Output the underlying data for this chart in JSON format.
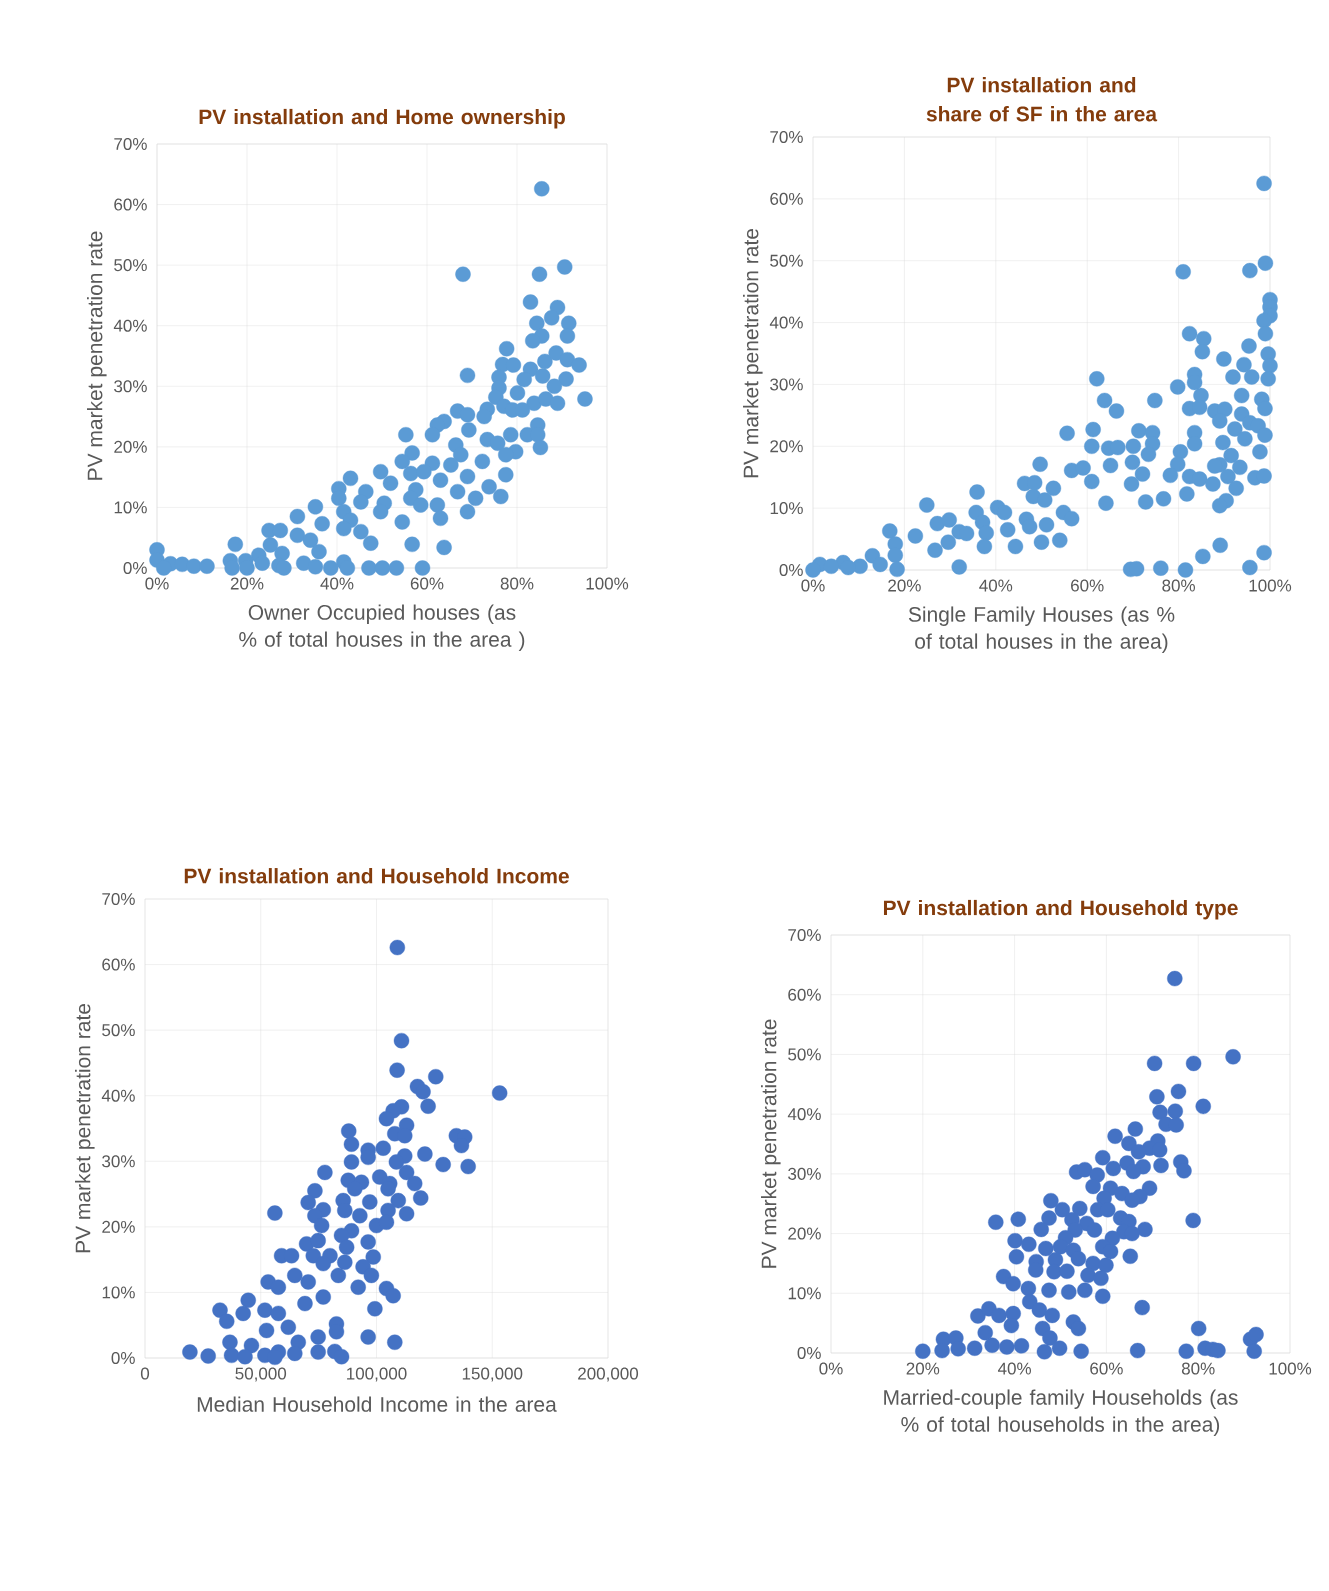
{
  "chart_data": [
    {
      "type": "scatter",
      "title": "PV installation and Home ownership",
      "xlabel": "Owner Occupied houses (as % of total houses in the area )",
      "ylabel": "PV market penetration rate",
      "grid": true,
      "marker": "circle",
      "xlim": [
        0,
        100
      ],
      "ylim": [
        0,
        70
      ],
      "xticks": [
        {
          "value": 0,
          "label": "0%"
        },
        {
          "value": 20,
          "label": "20%"
        },
        {
          "value": 40,
          "label": "40%"
        },
        {
          "value": 60,
          "label": "60%"
        },
        {
          "value": 80,
          "label": "80%"
        },
        {
          "value": 100,
          "label": "100%"
        }
      ],
      "yticks": [
        {
          "value": 0,
          "label": "0%"
        },
        {
          "value": 10,
          "label": "10%"
        },
        {
          "value": 20,
          "label": "20%"
        },
        {
          "value": 30,
          "label": "30%"
        },
        {
          "value": 40,
          "label": "40%"
        },
        {
          "value": 50,
          "label": "50%"
        },
        {
          "value": 60,
          "label": "60%"
        },
        {
          "value": 70,
          "label": "70%"
        }
      ],
      "x": [
        85.5,
        68,
        85,
        90.6,
        83,
        89,
        87.7,
        84.4,
        91.5,
        85.5,
        83.5,
        91.2,
        77.7,
        88.7,
        91.2,
        86.2,
        93.8,
        76.8,
        79.2,
        83,
        69,
        76,
        81.6,
        85.7,
        90.9,
        88.3,
        76,
        80.1,
        75.3,
        83.8,
        86.4,
        89,
        95.1,
        77.1,
        79,
        81.2,
        73.4,
        66.8,
        69,
        63.8,
        72.7,
        62.3,
        84.6,
        69.3,
        61.2,
        55.3,
        73.4,
        78.6,
        82.3,
        84.6,
        75.7,
        66.4,
        79.7,
        77.5,
        85.2,
        56.7,
        67.5,
        54.5,
        61.2,
        65.3,
        72.3,
        49.7,
        56.4,
        59.3,
        77.5,
        69,
        43,
        51.9,
        63,
        73.8,
        40.4,
        46.4,
        57.5,
        66.8,
        76.4,
        40.4,
        45.3,
        50.5,
        56.4,
        70.8,
        62.3,
        58.6,
        35.2,
        49.7,
        41.5,
        69,
        63,
        31.2,
        36.7,
        54.5,
        43,
        24.9,
        27.4,
        41.5,
        45.3,
        31.2,
        34.1,
        47.5,
        56.7,
        63.8,
        17.4,
        25.2,
        27.8,
        36,
        22.6,
        0,
        0,
        3,
        5.6,
        8.2,
        11.1,
        16.3,
        19.7,
        16.7,
        20,
        23.4,
        27.1,
        28.2,
        32.6,
        35.2,
        38.6,
        41.5,
        42.3,
        47.1,
        50.1,
        53.2,
        59,
        1.5
      ],
      "series": [
        {
          "color": "#5b9bd5",
          "values": [
            62.6,
            48.5,
            48.5,
            49.7,
            43.9,
            43,
            41.3,
            40.4,
            40.4,
            38.3,
            37.5,
            38.3,
            36.2,
            35.5,
            34.4,
            34.1,
            33.5,
            33.6,
            33.5,
            32.8,
            31.8,
            31.5,
            31.1,
            31.7,
            31.2,
            30,
            29.7,
            28.9,
            28.2,
            27.2,
            27.9,
            27.2,
            27.9,
            26.7,
            26.1,
            26.1,
            26.2,
            25.9,
            25.3,
            24.2,
            25,
            23.6,
            23.6,
            22.8,
            22,
            22,
            21.2,
            22,
            22,
            22,
            20.6,
            20.3,
            19.2,
            18.7,
            19.9,
            19,
            18.7,
            17.6,
            17.3,
            17,
            17.6,
            15.9,
            15.6,
            15.9,
            15.4,
            15.1,
            14.8,
            14,
            14.5,
            13.4,
            13.1,
            12.6,
            12.9,
            12.6,
            11.8,
            11.5,
            10.9,
            10.7,
            11.5,
            11.5,
            10.4,
            10.4,
            10.1,
            9.3,
            9.3,
            9.3,
            8.2,
            8.5,
            7.3,
            7.6,
            7.9,
            6.2,
            6.2,
            6.5,
            6,
            5.4,
            4.6,
            4.1,
            3.9,
            3.4,
            3.9,
            3.8,
            2.4,
            2.7,
            2.1,
            3,
            1.3,
            0.7,
            0.6,
            0.3,
            0.3,
            1.2,
            1.2,
            0,
            0,
            0.8,
            0.4,
            0,
            0.8,
            0.2,
            0,
            1,
            0,
            0,
            0,
            0,
            0,
            0
          ]
        }
      ]
    },
    {
      "type": "scatter",
      "title": "PV installation and share of SF in the area",
      "xlabel": "Single Family Houses (as % of total houses in the area)",
      "ylabel": "PV market penetration rate",
      "grid": true,
      "marker": "circle",
      "xlim": [
        0,
        100
      ],
      "ylim": [
        0,
        70
      ],
      "xticks": [
        {
          "value": 0,
          "label": "0%"
        },
        {
          "value": 20,
          "label": "20%"
        },
        {
          "value": 40,
          "label": "40%"
        },
        {
          "value": 60,
          "label": "60%"
        },
        {
          "value": 80,
          "label": "80%"
        },
        {
          "value": 100,
          "label": "100%"
        }
      ],
      "yticks": [
        {
          "value": 0,
          "label": "0%"
        },
        {
          "value": 10,
          "label": "10%"
        },
        {
          "value": 20,
          "label": "20%"
        },
        {
          "value": 30,
          "label": "30%"
        },
        {
          "value": 40,
          "label": "40%"
        },
        {
          "value": 50,
          "label": "50%"
        },
        {
          "value": 60,
          "label": "60%"
        },
        {
          "value": 70,
          "label": "70%"
        }
      ],
      "x": [
        98.7,
        81,
        95.6,
        99,
        100,
        100,
        100,
        98.7,
        99,
        82.4,
        85.5,
        85.2,
        95.4,
        89.9,
        99.6,
        94.3,
        100,
        83.5,
        83.5,
        91.9,
        96,
        99.6,
        62.1,
        79.8,
        84.9,
        93.8,
        98.2,
        74.8,
        63.8,
        66.4,
        82.4,
        84.6,
        87.9,
        90.1,
        98.9,
        93.8,
        89,
        95.6,
        97.4,
        55.6,
        61.3,
        71.3,
        74.3,
        83.5,
        92.3,
        98.9,
        89.7,
        94.5,
        83.5,
        61,
        64.7,
        66.7,
        70.1,
        74.3,
        73.4,
        80.4,
        97.8,
        91.5,
        89,
        49.7,
        69.9,
        65.1,
        79.8,
        87.9,
        93.4,
        56.6,
        59.1,
        72.1,
        78.2,
        82.4,
        84.6,
        87.5,
        90.8,
        96.7,
        98.7,
        61,
        46.3,
        48.5,
        52.6,
        69.7,
        92.6,
        35.9,
        48.2,
        50.7,
        81.8,
        76.7,
        72.8,
        64.1,
        90.4,
        89,
        24.9,
        40.4,
        41.9,
        35.7,
        54.8,
        56.6,
        27.2,
        29.8,
        46.7,
        37.1,
        47.4,
        51.1,
        42.6,
        16.8,
        32,
        33.6,
        37.9,
        22.4,
        29.6,
        50,
        54,
        18,
        26.7,
        37.5,
        44.3,
        89.1,
        85.3,
        98.7,
        18,
        13,
        14.7,
        10.3,
        6.6,
        1.5,
        4,
        0,
        18.4,
        32,
        69.5,
        70.8,
        76.1,
        81.5,
        95.6,
        7.7
      ],
      "series": [
        {
          "color": "#5b9bd5",
          "values": [
            62.5,
            48.2,
            48.4,
            49.6,
            43.7,
            42.5,
            41.1,
            40.3,
            38.2,
            38.2,
            37.4,
            35.3,
            36.2,
            34.1,
            34.9,
            33.2,
            33,
            31.6,
            30.3,
            31.2,
            31.2,
            30.9,
            30.9,
            29.6,
            28.2,
            28.2,
            27.6,
            27.4,
            27.4,
            25.7,
            26.1,
            26.3,
            25.7,
            26,
            26.1,
            25.2,
            24.1,
            23.8,
            23.3,
            22.1,
            22.7,
            22.5,
            22.2,
            22.2,
            22.8,
            21.8,
            20.6,
            21.2,
            20.4,
            20,
            19.7,
            19.8,
            20,
            20.4,
            18.7,
            19.1,
            19.1,
            18.5,
            17,
            17.1,
            17.4,
            16.9,
            17.1,
            16.8,
            16.6,
            16.1,
            16.5,
            15.5,
            15.3,
            15.1,
            14.7,
            13.9,
            15.1,
            14.9,
            15.2,
            14.3,
            14,
            14.1,
            13.2,
            13.9,
            13.2,
            12.6,
            11.9,
            11.3,
            12.3,
            11.5,
            11,
            10.8,
            11.2,
            10.4,
            10.5,
            10.1,
            9.3,
            9.3,
            9.3,
            8.3,
            7.5,
            8.1,
            8.2,
            7.7,
            7,
            7.3,
            6.5,
            6.3,
            6.2,
            5.9,
            6,
            5.5,
            4.5,
            4.5,
            4.8,
            4.2,
            3.2,
            3.8,
            3.8,
            4,
            2.2,
            2.8,
            2.4,
            2.3,
            0.9,
            0.6,
            1.2,
            0.9,
            0.6,
            0,
            0.1,
            0.5,
            0.1,
            0.2,
            0.3,
            0,
            0.4,
            0.4
          ]
        }
      ]
    },
    {
      "type": "scatter",
      "title": "PV installation and Household Income",
      "xlabel": "Median Household  Income in the area",
      "ylabel": "PV market penetration rate",
      "grid": true,
      "marker": "circle",
      "xlim": [
        0,
        200000
      ],
      "ylim": [
        0,
        70
      ],
      "xticks": [
        0,
        {
          "value": 50000,
          "label": "50,000"
        },
        {
          "value": 100000,
          "label": "100,000"
        },
        {
          "value": 150000,
          "label": "150,000"
        },
        {
          "value": 200000,
          "label": "200,000"
        }
      ],
      "yticks": [
        {
          "value": 0,
          "label": "0%"
        },
        {
          "value": 10,
          "label": "10%"
        },
        {
          "value": 20,
          "label": "20%"
        },
        {
          "value": 30,
          "label": "30%"
        },
        {
          "value": 40,
          "label": "40%"
        },
        {
          "value": 50,
          "label": "50%"
        },
        {
          "value": 60,
          "label": "60%"
        },
        {
          "value": 70,
          "label": "70%"
        }
      ],
      "x": [
        109000,
        110800,
        108900,
        125600,
        153200,
        117700,
        120100,
        122300,
        110800,
        107200,
        104300,
        113000,
        88000,
        107900,
        112200,
        134500,
        138100,
        136700,
        89200,
        96400,
        102900,
        120900,
        112200,
        89200,
        96400,
        108600,
        128800,
        139600,
        77700,
        113000,
        101400,
        87800,
        93500,
        105700,
        116500,
        73400,
        90600,
        105000,
        119100,
        70500,
        85600,
        97100,
        109400,
        77000,
        86300,
        56100,
        105000,
        113000,
        73400,
        92800,
        100000,
        104300,
        76300,
        89200,
        84900,
        69800,
        74800,
        87100,
        96400,
        59000,
        63300,
        72700,
        79900,
        98600,
        86300,
        77000,
        94200,
        64700,
        83500,
        97800,
        53200,
        57600,
        70500,
        92100,
        104300,
        107200,
        44600,
        77000,
        32400,
        42400,
        69100,
        51800,
        57600,
        35300,
        61900,
        52500,
        82700,
        99300,
        36700,
        66200,
        74800,
        96400,
        107900,
        82700,
        19400,
        27300,
        37400,
        46000,
        51800,
        57600,
        64700,
        74800,
        82000,
        84900,
        43200,
        56100
      ],
      "series": [
        {
          "color": "#4472c4",
          "values": [
            62.6,
            48.4,
            43.9,
            42.9,
            40.4,
            41.4,
            40.6,
            38.4,
            38.3,
            37.7,
            36.5,
            35.5,
            34.6,
            34.2,
            33.9,
            33.9,
            33.7,
            32.4,
            32.6,
            31.7,
            32,
            31.1,
            30.8,
            29.9,
            30.6,
            29.9,
            29.5,
            29.2,
            28.3,
            28.3,
            27.6,
            27.1,
            26.8,
            26.6,
            26.6,
            25.5,
            25.8,
            25.8,
            24.4,
            23.7,
            24,
            23.8,
            24,
            22.6,
            22.5,
            22.1,
            22.5,
            22,
            21.7,
            21.7,
            20.2,
            20.7,
            20.2,
            19.4,
            18.7,
            17.4,
            17.9,
            16.9,
            17.7,
            15.6,
            15.6,
            15.6,
            15.6,
            15.4,
            14.6,
            14.4,
            13.9,
            12.6,
            12.6,
            12.6,
            11.6,
            10.8,
            11.6,
            10.8,
            10.6,
            9.5,
            8.8,
            9.3,
            7.3,
            6.8,
            8.3,
            7.3,
            6.8,
            5.6,
            4.7,
            4.2,
            5.2,
            7.5,
            2.4,
            2.4,
            3.2,
            3.2,
            2.4,
            4,
            0.9,
            0.3,
            0.4,
            1.9,
            0.4,
            0.9,
            0.7,
            0.9,
            1,
            0.2,
            0.2,
            0.1
          ]
        }
      ]
    },
    {
      "type": "scatter",
      "title": "PV installation and Household type",
      "xlabel": "Married-couple family Households (as % of total households in the area)",
      "ylabel": "PV market penetration rate",
      "grid": true,
      "marker": "circle",
      "xlim": [
        0,
        100
      ],
      "ylim": [
        0,
        70
      ],
      "xticks": [
        {
          "value": 0,
          "label": "0%"
        },
        {
          "value": 20,
          "label": "20%"
        },
        {
          "value": 40,
          "label": "40%"
        },
        {
          "value": 60,
          "label": "60%"
        },
        {
          "value": 80,
          "label": "80%"
        },
        {
          "value": 100,
          "label": "100%"
        }
      ],
      "yticks": [
        {
          "value": 0,
          "label": "0%"
        },
        {
          "value": 10,
          "label": "10%"
        },
        {
          "value": 20,
          "label": "20%"
        },
        {
          "value": 30,
          "label": "30%"
        },
        {
          "value": 40,
          "label": "40%"
        },
        {
          "value": 50,
          "label": "50%"
        },
        {
          "value": 60,
          "label": "60%"
        },
        {
          "value": 70,
          "label": "70%"
        }
      ],
      "x": [
        74.9,
        70.5,
        79,
        87.6,
        75.7,
        71,
        81.1,
        75,
        71.7,
        73,
        75.2,
        66.3,
        61.9,
        64.9,
        71.2,
        69.4,
        71.6,
        67,
        59.2,
        64.5,
        76.2,
        76.9,
        71.9,
        61.5,
        53.5,
        55.3,
        58,
        68,
        65.9,
        57.1,
        60.9,
        69.4,
        63.4,
        67.3,
        59.5,
        65.6,
        47.9,
        50.4,
        54.2,
        58.1,
        60.3,
        47.5,
        40.8,
        35.9,
        52.5,
        55.7,
        63.1,
        64.9,
        78.9,
        45.8,
        53.2,
        57.4,
        63.8,
        68.4,
        65.6,
        51.1,
        61.3,
        40.1,
        43.1,
        50,
        59.2,
        46.8,
        52.8,
        60.9,
        40.4,
        65.2,
        44.7,
        48.9,
        53.9,
        57.1,
        59.9,
        44.6,
        48.6,
        51.4,
        56,
        58.8,
        37.6,
        39.7,
        43,
        47.5,
        51.8,
        55.3,
        59.2,
        43.3,
        45.4,
        67.8,
        32,
        34.4,
        36.6,
        39.7,
        48.2,
        39.3,
        52.8,
        53.9,
        46.1,
        47.7,
        33.6,
        80.1,
        24.5,
        27.2,
        91.4,
        92.6,
        20,
        24.2,
        27.7,
        31.3,
        35.1,
        38.3,
        41.5,
        46.5,
        49.8,
        54.5,
        66.8,
        77.4,
        81.5,
        83.2,
        84.3,
        92.2
      ],
      "series": [
        {
          "color": "#4472c4",
          "values": [
            62.7,
            48.5,
            48.5,
            49.6,
            43.8,
            42.9,
            41.3,
            40.5,
            40.3,
            38.3,
            38.2,
            37.5,
            36.3,
            35.1,
            35.5,
            34.3,
            34,
            33.7,
            32.7,
            31.8,
            32,
            30.5,
            31.4,
            30.9,
            30.3,
            30.7,
            29.8,
            31.2,
            30.4,
            27.9,
            27.6,
            27.6,
            26.7,
            26.2,
            25.9,
            25.6,
            25.5,
            24,
            24.2,
            24,
            24,
            22.6,
            22.4,
            21.9,
            22.3,
            21.7,
            22.6,
            22,
            22.2,
            20.7,
            20.6,
            20.6,
            20.3,
            20.7,
            20,
            19.3,
            19.2,
            18.8,
            18.2,
            17.8,
            17.8,
            17.5,
            17.2,
            17,
            16.1,
            16.2,
            15.3,
            15.6,
            15.8,
            15,
            14.7,
            13.9,
            13.6,
            13.7,
            13,
            12.5,
            12.8,
            11.6,
            10.8,
            10.5,
            10.2,
            10.5,
            9.5,
            8.6,
            7.2,
            7.6,
            6.2,
            7.4,
            6.3,
            6.6,
            6.3,
            4.6,
            5.2,
            4.1,
            4.1,
            2.5,
            3.4,
            4.1,
            2.3,
            2.5,
            2.3,
            3.1,
            0.3,
            0.4,
            0.7,
            0.8,
            1.3,
            1,
            1.2,
            0.2,
            0.8,
            0.3,
            0.4,
            0.3,
            0.8,
            0.6,
            0.4,
            0.3
          ]
        }
      ]
    }
  ]
}
